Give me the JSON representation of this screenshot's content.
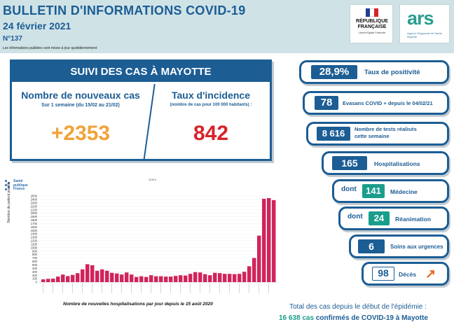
{
  "header": {
    "title": "BULLETIN D'INFORMATIONS COVID-19",
    "date": "24 février 2021",
    "number": "N°137",
    "note": "Les informations publiées sont mises à jour quotidiennement"
  },
  "logos": {
    "rf_name": "RÉPUBLIQUE FRANÇAISE",
    "rf_motto": "Liberté Égalité Fraternité",
    "ars_word": "ars",
    "ars_sub": "Agence Régionale de Santé Mayotte"
  },
  "suivi": {
    "title": "SUIVI DES CAS À MAYOTTE",
    "new_cases_title": "Nombre de nouveaux cas",
    "new_cases_sub": "Sur 1 semaine (du 15/02 au 21/02)",
    "new_cases_value": "+2353",
    "incidence_title": "Taux d'incidence",
    "incidence_sub": "(nombre de cas pour 100 000 habitants) :",
    "incidence_value": "842"
  },
  "stats": {
    "positivity": {
      "value": "28,9%",
      "label": "Taux de positivité"
    },
    "evasans": {
      "value": "78",
      "label": "Evasans COVID + depuis le 04/02/21"
    },
    "tests": {
      "value": "8 616",
      "label": "Nombre de tests réalisés cette semaine"
    },
    "hospit": {
      "value": "165",
      "label": "Hospitalisations"
    },
    "medecine": {
      "prefix": "dont",
      "value": "141",
      "label": "Médecine"
    },
    "reanimation": {
      "prefix": "dont",
      "value": "24",
      "label": "Réanimation"
    },
    "urgences": {
      "value": "6",
      "label": "Soins aux urgences"
    },
    "deces": {
      "value": "98",
      "label": "Décès",
      "trend_icon": "arrow-up-right-icon"
    }
  },
  "chart_meta": {
    "santepublique": "Santé publique France",
    "caption": "Nombre de nouvelles hospitalisations par jour depuis le 15 août 2020",
    "ylabel": "Nombre de patient positifs",
    "xlabel": "Jours"
  },
  "chart_data": {
    "type": "bar",
    "ylabel": "Nombre de patient positifs",
    "xlabel": "Jours",
    "ylim": [
      0,
      2500
    ],
    "yticks": [
      0,
      100,
      200,
      300,
      400,
      500,
      600,
      700,
      800,
      900,
      1000,
      1100,
      1200,
      1300,
      1400,
      1500,
      1600,
      1700,
      1800,
      1900,
      2000,
      2100,
      2200,
      2300,
      2400,
      2500
    ],
    "values": [
      80,
      95,
      100,
      160,
      220,
      175,
      210,
      260,
      370,
      520,
      490,
      330,
      370,
      330,
      270,
      250,
      220,
      280,
      220,
      150,
      170,
      150,
      200,
      170,
      170,
      160,
      160,
      180,
      200,
      190,
      240,
      290,
      280,
      230,
      200,
      270,
      260,
      240,
      240,
      230,
      240,
      300,
      460,
      700,
      1350,
      2420,
      2440,
      2380
    ],
    "color": "#d1245a"
  },
  "totals": {
    "line1": "Total des cas depuis le début de l'épidémie :",
    "count": "16 638 cas",
    "line2_rest": "confirmés de COVID-19 à Mayotte"
  },
  "colors": {
    "primary": "#1c5d94",
    "green": "#1a9e8c",
    "orange": "#f2a23a",
    "red": "#d8232a",
    "bar": "#d1245a"
  }
}
